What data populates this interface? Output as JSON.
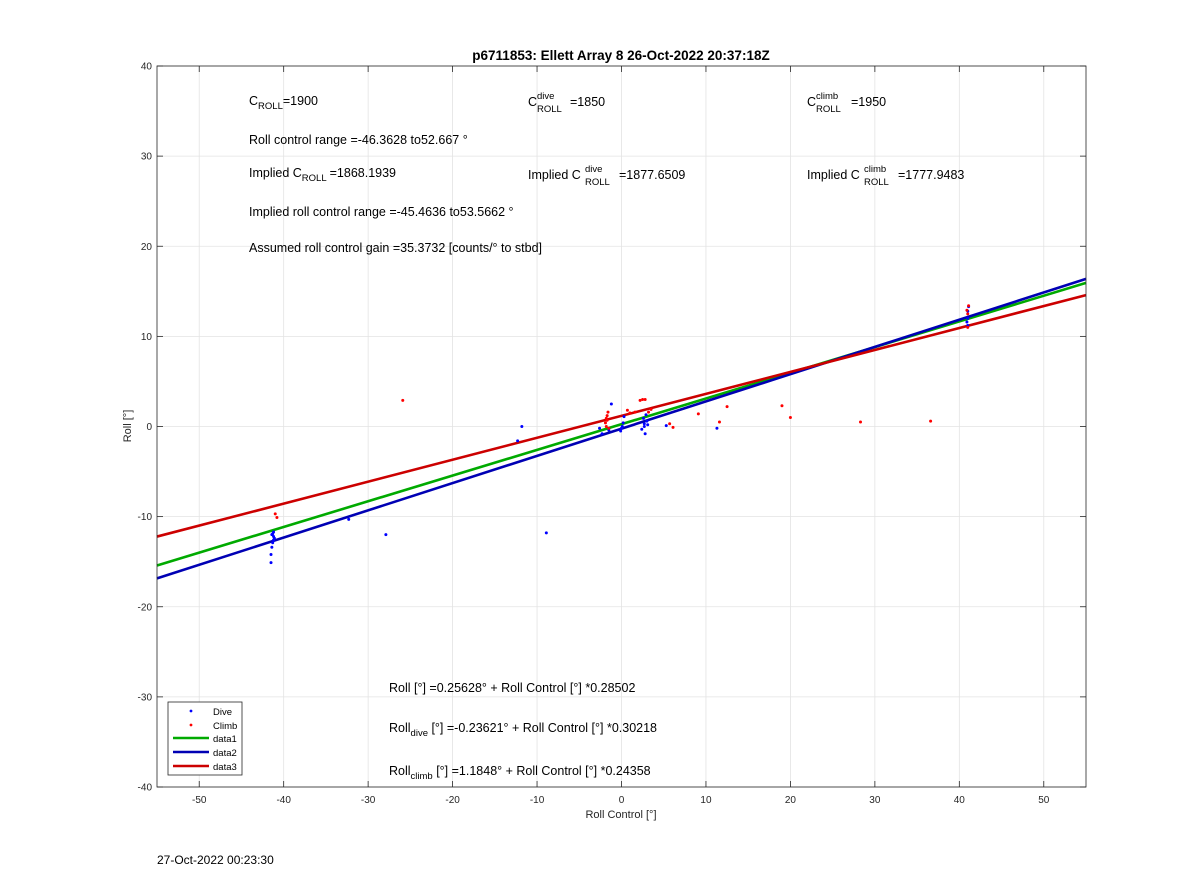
{
  "chart_data": {
    "type": "scatter",
    "title": "p6711853: Ellett Array 8 26-Oct-2022 20:37:18Z",
    "xlabel": "Roll Control [°]",
    "ylabel": "Roll [°]",
    "xlim": [
      -55,
      55
    ],
    "ylim": [
      -40,
      40
    ],
    "xticks": [
      -50,
      -40,
      -30,
      -20,
      -10,
      0,
      10,
      20,
      30,
      40,
      50
    ],
    "yticks": [
      -40,
      -30,
      -20,
      -10,
      0,
      10,
      20,
      30,
      40
    ],
    "grid": true,
    "legend_placement": "bottom-left",
    "scatter_series": [
      {
        "name": "Dive",
        "color": "#0000ff",
        "points": [
          [
            -41.2,
            -12.2
          ],
          [
            -41.2,
            -12.6
          ],
          [
            -41.3,
            -11.9
          ],
          [
            -41.3,
            -12.9
          ],
          [
            -41.4,
            -13.4
          ],
          [
            -41.5,
            -14.2
          ],
          [
            -41.5,
            -15.1
          ],
          [
            -41.1,
            -12.4
          ],
          [
            -41.2,
            -11.7
          ],
          [
            -41.4,
            -12.0
          ],
          [
            -32.3,
            -10.3
          ],
          [
            -27.9,
            -12.0
          ],
          [
            -12.3,
            -1.6
          ],
          [
            -11.8,
            0.0
          ],
          [
            -8.9,
            -11.8
          ],
          [
            -2.6,
            -0.2
          ],
          [
            -2.3,
            -0.8
          ],
          [
            -1.5,
            -0.4
          ],
          [
            -1.2,
            2.5
          ],
          [
            -0.1,
            -0.5
          ],
          [
            0.0,
            -0.2
          ],
          [
            0.2,
            0.4
          ],
          [
            0.3,
            1.1
          ],
          [
            0.1,
            0.0
          ],
          [
            2.4,
            -0.3
          ],
          [
            2.7,
            0.3
          ],
          [
            2.6,
            0.9
          ],
          [
            2.8,
            -0.8
          ],
          [
            3.0,
            0.6
          ],
          [
            3.1,
            0.2
          ],
          [
            2.9,
            1.3
          ],
          [
            2.7,
            0.0
          ],
          [
            5.3,
            0.1
          ],
          [
            11.3,
            -0.2
          ],
          [
            41.0,
            11.2
          ],
          [
            41.0,
            12.0
          ],
          [
            41.0,
            12.8
          ],
          [
            41.1,
            13.3
          ],
          [
            40.9,
            11.6
          ]
        ]
      },
      {
        "name": "Climb",
        "color": "#ff0000",
        "points": [
          [
            -41.0,
            -9.7
          ],
          [
            -40.8,
            -10.1
          ],
          [
            -25.9,
            2.9
          ],
          [
            -1.9,
            0.4
          ],
          [
            -1.8,
            0.9
          ],
          [
            -1.7,
            1.2
          ],
          [
            -1.6,
            1.6
          ],
          [
            -1.8,
            0.0
          ],
          [
            -1.5,
            -0.2
          ],
          [
            -1.7,
            0.7
          ],
          [
            0.7,
            1.8
          ],
          [
            1.0,
            1.5
          ],
          [
            1.6,
            1.6
          ],
          [
            2.2,
            2.9
          ],
          [
            2.5,
            3.0
          ],
          [
            2.8,
            3.0
          ],
          [
            3.2,
            1.6
          ],
          [
            3.5,
            1.9
          ],
          [
            5.7,
            0.3
          ],
          [
            6.1,
            -0.1
          ],
          [
            9.1,
            1.4
          ],
          [
            11.6,
            0.5
          ],
          [
            12.5,
            2.2
          ],
          [
            19.0,
            2.3
          ],
          [
            20.0,
            1.0
          ],
          [
            28.3,
            0.5
          ],
          [
            36.6,
            0.6
          ],
          [
            41.0,
            12.5
          ],
          [
            41.1,
            13.4
          ],
          [
            41.0,
            11.0
          ],
          [
            40.9,
            12.9
          ]
        ]
      }
    ],
    "fit_lines": [
      {
        "name": "data1",
        "color": "#00aa00",
        "intercept": 0.25628,
        "slope": 0.28502
      },
      {
        "name": "data2",
        "color": "#0000b4",
        "intercept": -0.23621,
        "slope": 0.30218
      },
      {
        "name": "data3",
        "color": "#cc0000",
        "intercept": 1.1848,
        "slope": 0.24358
      }
    ]
  },
  "annotations": {
    "c_roll_prefix": "C",
    "c_roll_sub": "ROLL",
    "c_roll_value": "=1900",
    "c_dive_sup": "dive",
    "c_dive_value": "=1850",
    "c_climb_sup": "climb",
    "c_climb_value": "=1950",
    "range": "Roll control range =-46.3628 to52.667 °",
    "implied_prefix": "Implied C",
    "implied_c_roll_value": "=1868.1939",
    "implied_c_dive_value": "=1877.6509",
    "implied_c_climb_value": "=1777.9483",
    "implied_range": "Implied roll control range =-45.4636 to53.5662 °",
    "gain": "Assumed roll control gain =35.3732 [counts/° to stbd]",
    "eq_all": "Roll [°] =0.25628° + Roll Control [°] *0.28502",
    "eq_roll_word": "Roll",
    "eq_dive_sub": "dive",
    "eq_dive_rest": " [°] =-0.23621° + Roll Control [°] *0.30218",
    "eq_climb_sub": "climb",
    "eq_climb_rest": " [°] =1.1848° + Roll Control [°] *0.24358"
  },
  "footer": {
    "timestamp": "27-Oct-2022 00:23:30"
  }
}
